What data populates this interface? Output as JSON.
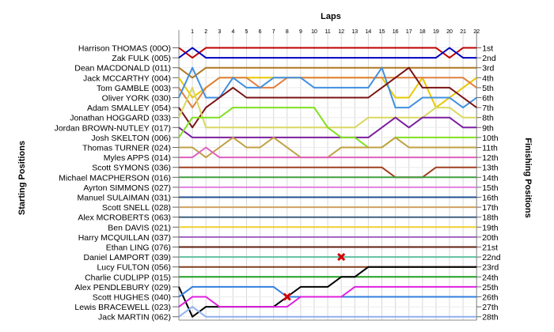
{
  "chart_data": {
    "type": "line",
    "title": "Laps",
    "ylabel_left": "Starting Positions",
    "ylabel_right": "Finishing Positions",
    "laps": [
      1,
      2,
      3,
      4,
      5,
      6,
      7,
      8,
      9,
      10,
      11,
      12,
      13,
      14,
      15,
      16,
      17,
      18,
      19,
      20,
      21,
      22
    ],
    "finish_labels": [
      "1st",
      "2nd",
      "3rd",
      "4th",
      "5th",
      "6th",
      "7th",
      "8th",
      "9th",
      "10th",
      "11th",
      "12th",
      "13th",
      "14th",
      "15th",
      "16th",
      "17th",
      "18th",
      "19th",
      "20th",
      "21st",
      "22nd",
      "23rd",
      "24th",
      "25th",
      "26th",
      "27th",
      "28th"
    ],
    "grid": true,
    "series": [
      {
        "name": "Harrison THOMAS (00O)",
        "color": "#c00000",
        "positions": [
          2,
          1,
          1,
          1,
          1,
          1,
          1,
          1,
          1,
          1,
          1,
          1,
          1,
          1,
          1,
          1,
          1,
          1,
          1,
          2,
          1,
          1
        ]
      },
      {
        "name": "Zak FULK (005)",
        "color": "#0000c0",
        "positions": [
          1,
          2,
          2,
          2,
          2,
          2,
          2,
          2,
          2,
          2,
          2,
          2,
          2,
          2,
          2,
          2,
          2,
          2,
          2,
          1,
          2,
          2
        ]
      },
      {
        "name": "Dean MACDONALD (011)",
        "color": "#b07820",
        "positions": [
          4,
          3,
          3,
          3,
          3,
          3,
          3,
          3,
          3,
          3,
          3,
          3,
          3,
          3,
          3,
          3,
          3,
          3,
          3,
          3,
          3,
          3
        ]
      },
      {
        "name": "Jack MCCARTHY (004)",
        "color": "#e8c800",
        "positions": [
          6,
          5,
          4,
          4,
          4,
          4,
          4,
          4,
          4,
          4,
          4,
          4,
          4,
          4,
          4,
          6,
          6,
          4,
          7,
          6,
          5,
          4
        ]
      },
      {
        "name": "Tom GAMBLE (003)",
        "color": "#e08040",
        "positions": [
          7,
          5,
          4,
          4,
          4,
          5,
          5,
          4,
          4,
          4,
          4,
          4,
          4,
          4,
          4,
          4,
          4,
          4,
          4,
          4,
          4,
          5
        ]
      },
      {
        "name": "Oliver YORK (030)",
        "color": "#4090e0",
        "positions": [
          3,
          6,
          6,
          4,
          5,
          5,
          4,
          4,
          4,
          5,
          5,
          5,
          5,
          5,
          3,
          7,
          7,
          6,
          6,
          6,
          7,
          6
        ]
      },
      {
        "name": "Adam SMALLEY (054)",
        "color": "#7a1414",
        "positions": [
          9,
          7,
          6,
          5,
          6,
          6,
          6,
          6,
          6,
          6,
          6,
          6,
          6,
          6,
          5,
          4,
          3,
          5,
          5,
          5,
          6,
          7
        ]
      },
      {
        "name": "Jonathan HOGGARD (033)",
        "color": "#d8d860",
        "positions": [
          5,
          9,
          9,
          9,
          9,
          9,
          9,
          9,
          9,
          9,
          9,
          9,
          9,
          8,
          8,
          8,
          8,
          8,
          7,
          7,
          8,
          8
        ]
      },
      {
        "name": "Jordan BROWN-NUTLEY (017)",
        "color": "#7c1fa0",
        "positions": [
          10,
          10,
          10,
          10,
          10,
          10,
          10,
          10,
          10,
          10,
          10,
          10,
          10,
          10,
          9,
          8,
          9,
          8,
          8,
          8,
          9,
          9
        ]
      },
      {
        "name": "Josh SKELTON (006)",
        "color": "#80e020",
        "positions": [
          8,
          8,
          8,
          7,
          7,
          7,
          7,
          7,
          7,
          7,
          9,
          10,
          10,
          11,
          11,
          10,
          10,
          10,
          10,
          10,
          10,
          10
        ]
      },
      {
        "name": "Thomas TURNER (024)",
        "color": "#c0a040",
        "positions": [
          11,
          12,
          11,
          10,
          11,
          11,
          10,
          11,
          12,
          12,
          12,
          11,
          11,
          11,
          11,
          10,
          11,
          11,
          11,
          11,
          11,
          11
        ]
      },
      {
        "name": "Myles APPS (014)",
        "color": "#e060c0",
        "positions": [
          12,
          11,
          12,
          12,
          12,
          12,
          12,
          12,
          12,
          12,
          12,
          12,
          12,
          12,
          12,
          12,
          12,
          12,
          12,
          12,
          12,
          12
        ]
      },
      {
        "name": "Scott SYMONS (036)",
        "color": "#a04020",
        "positions": [
          13,
          13,
          13,
          13,
          13,
          13,
          13,
          13,
          13,
          13,
          13,
          13,
          13,
          13,
          13,
          14,
          14,
          14,
          13,
          13,
          13,
          13
        ]
      },
      {
        "name": "Michael MACPHERSON (016)",
        "color": "#40a040",
        "positions": [
          14,
          14,
          14,
          14,
          14,
          14,
          14,
          14,
          14,
          14,
          14,
          14,
          14,
          14,
          14,
          14,
          14,
          14,
          14,
          14,
          14,
          14
        ]
      },
      {
        "name": "Ayrton SIMMONS (027)",
        "color": "#e080e0",
        "positions": [
          15,
          15,
          15,
          15,
          15,
          15,
          15,
          15,
          15,
          15,
          15,
          15,
          15,
          15,
          15,
          15,
          15,
          15,
          15,
          15,
          15,
          15
        ]
      },
      {
        "name": "Manuel SULAIMAN (031)",
        "color": "#205090",
        "positions": [
          16,
          16,
          16,
          16,
          16,
          16,
          16,
          16,
          16,
          16,
          16,
          16,
          16,
          16,
          16,
          16,
          16,
          16,
          16,
          16,
          16,
          16
        ]
      },
      {
        "name": "Scott SNELL (028)",
        "color": "#d0a060",
        "positions": [
          17,
          17,
          17,
          17,
          17,
          17,
          17,
          17,
          17,
          17,
          17,
          17,
          17,
          17,
          17,
          17,
          17,
          17,
          17,
          17,
          17,
          17
        ]
      },
      {
        "name": "Alex MCROBERTS (063)",
        "color": "#406080",
        "positions": [
          18,
          18,
          18,
          18,
          18,
          18,
          18,
          18,
          18,
          18,
          18,
          18,
          18,
          18,
          18,
          18,
          18,
          18,
          18,
          18,
          18,
          18
        ]
      },
      {
        "name": "Ben DAVIS (021)",
        "color": "#f0d030",
        "positions": [
          19,
          19,
          19,
          19,
          19,
          19,
          19,
          19,
          19,
          19,
          19,
          19,
          19,
          19,
          19,
          19,
          19,
          19,
          19,
          19,
          19,
          19
        ]
      },
      {
        "name": "Harry MCQUILLAN (037)",
        "color": "#a060c0",
        "positions": [
          20,
          20,
          20,
          20,
          20,
          20,
          20,
          20,
          20,
          20,
          20,
          20,
          20,
          20,
          20,
          20,
          20,
          20,
          20,
          20,
          20,
          20
        ]
      },
      {
        "name": "Ethan LING (076)",
        "color": "#602010",
        "positions": [
          21,
          21,
          21,
          21,
          21,
          21,
          21,
          21,
          21,
          21,
          21,
          21,
          21,
          21,
          21,
          21,
          21,
          21,
          21,
          21,
          21,
          21
        ]
      },
      {
        "name": "Daniel LAMPORT (039)",
        "color": "#60c0a0",
        "positions": [
          22,
          22,
          22,
          22,
          22,
          22,
          22,
          22,
          22,
          22,
          22,
          22,
          22,
          22,
          22,
          22,
          22,
          22,
          22,
          22,
          22,
          22
        ]
      },
      {
        "name": "Lucy FULTON (056)",
        "color": "#804020",
        "positions": [
          23,
          23,
          23,
          23,
          23,
          23,
          23,
          23,
          23,
          23,
          23,
          23,
          23,
          23,
          23,
          23,
          23,
          23,
          23,
          23,
          23,
          23
        ]
      },
      {
        "name": "Charlie CUDLIPP (015)",
        "color": "#20a020",
        "positions": [
          24,
          24,
          24,
          24,
          24,
          24,
          24,
          24,
          24,
          24,
          24,
          24,
          24,
          24,
          24,
          24,
          24,
          24,
          24,
          24,
          24,
          24
        ]
      },
      {
        "name": "Alex PENDLEBURY (029)",
        "color": "#000000",
        "positions": [
          28,
          27,
          27,
          27,
          27,
          27,
          27,
          26,
          25,
          25,
          25,
          24,
          24,
          23,
          23,
          23,
          23,
          23,
          23,
          23,
          23,
          23
        ]
      },
      {
        "name": "Scott HUGHES (040)",
        "color": "#3080e0",
        "positions": [
          25,
          25,
          25,
          25,
          25,
          25,
          25,
          26,
          26,
          26,
          26,
          26,
          26,
          26,
          26,
          26,
          26,
          26,
          26,
          26,
          26,
          26
        ]
      },
      {
        "name": "Lewis BRACEWELL (023)",
        "color": "#e020e0",
        "positions": [
          26,
          26,
          27,
          27,
          27,
          27,
          27,
          27,
          26,
          26,
          26,
          26,
          25,
          25,
          25,
          25,
          25,
          25,
          25,
          25,
          25,
          25
        ]
      },
      {
        "name": "Jack MARTIN (062)",
        "color": "#90b0f0",
        "positions": [
          27,
          28,
          28,
          28,
          28,
          28,
          28,
          28,
          28,
          28,
          28,
          28,
          28,
          28,
          28,
          28,
          28,
          28,
          28,
          28,
          28,
          28
        ]
      }
    ],
    "retirements": [
      {
        "lap": 8,
        "position": 26
      },
      {
        "lap": 12,
        "position": 22
      }
    ]
  }
}
